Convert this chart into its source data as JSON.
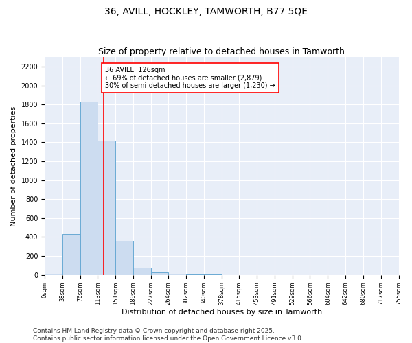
{
  "title": "36, AVILL, HOCKLEY, TAMWORTH, B77 5QE",
  "subtitle": "Size of property relative to detached houses in Tamworth",
  "xlabel": "Distribution of detached houses by size in Tamworth",
  "ylabel": "Number of detached properties",
  "bin_edges": [
    0,
    38,
    76,
    113,
    151,
    189,
    227,
    264,
    302,
    340,
    378,
    415,
    453,
    491,
    529,
    566,
    604,
    642,
    680,
    717,
    755
  ],
  "bar_heights": [
    15,
    430,
    1830,
    1420,
    360,
    80,
    30,
    15,
    5,
    2,
    1,
    0,
    0,
    0,
    0,
    0,
    0,
    0,
    0,
    0
  ],
  "bar_facecolor": "#ccdcf0",
  "bar_edgecolor": "#6aaad4",
  "background_color": "#e8eef8",
  "grid_color": "#ffffff",
  "vline_x": 126,
  "vline_color": "red",
  "annotation_text": "36 AVILL: 126sqm\n← 69% of detached houses are smaller (2,879)\n30% of semi-detached houses are larger (1,230) →",
  "annotation_box_color": "red",
  "ylim": [
    0,
    2300
  ],
  "yticks": [
    0,
    200,
    400,
    600,
    800,
    1000,
    1200,
    1400,
    1600,
    1800,
    2000,
    2200
  ],
  "tick_labels": [
    "0sqm",
    "38sqm",
    "76sqm",
    "113sqm",
    "151sqm",
    "189sqm",
    "227sqm",
    "264sqm",
    "302sqm",
    "340sqm",
    "378sqm",
    "415sqm",
    "453sqm",
    "491sqm",
    "529sqm",
    "566sqm",
    "604sqm",
    "642sqm",
    "680sqm",
    "717sqm",
    "755sqm"
  ],
  "footer_line1": "Contains HM Land Registry data © Crown copyright and database right 2025.",
  "footer_line2": "Contains public sector information licensed under the Open Government Licence v3.0.",
  "title_fontsize": 10,
  "subtitle_fontsize": 9,
  "axis_label_fontsize": 8,
  "tick_fontsize": 7,
  "footer_fontsize": 6.5
}
